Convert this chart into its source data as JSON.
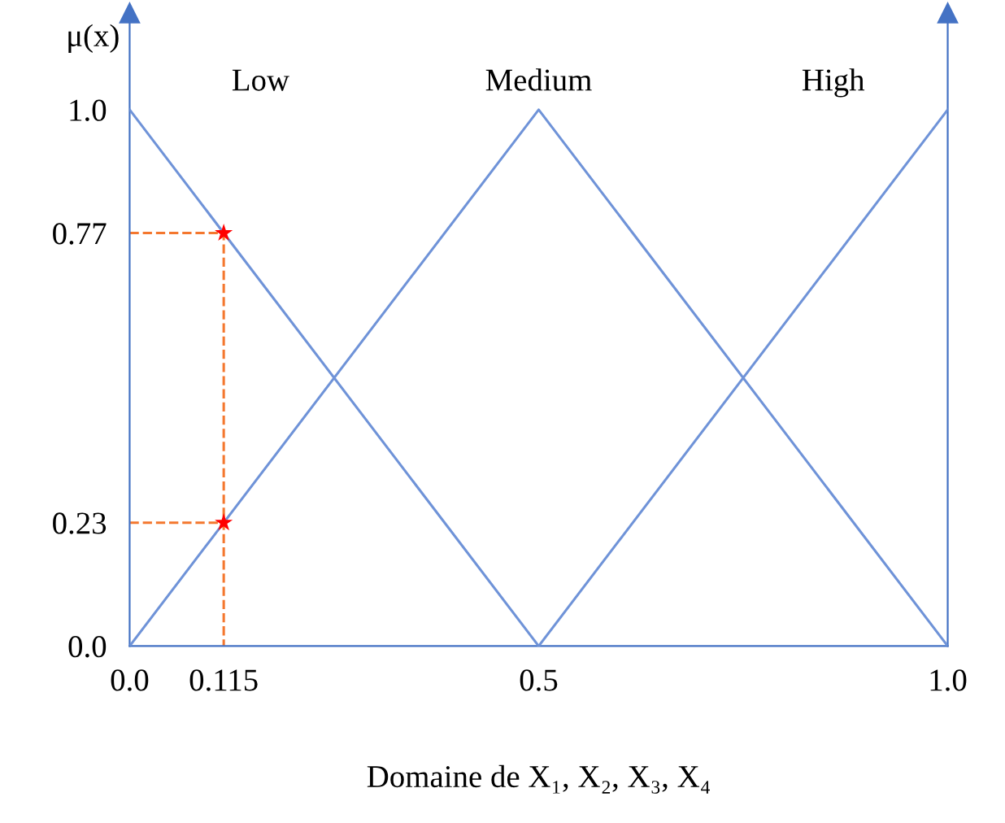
{
  "chart_data": {
    "type": "line",
    "xlabel": "Domaine de X₁, X₂, X₃, X₄",
    "ylabel": "μ(x)",
    "xlim": [
      0,
      1
    ],
    "ylim": [
      0,
      1.18
    ],
    "xticks": [
      {
        "value": 0,
        "label": "0.0"
      },
      0.115,
      0.5,
      {
        "value": 1,
        "label": "1.0"
      }
    ],
    "yticks": [
      {
        "value": 0,
        "label": "0.0"
      },
      0.23,
      0.77,
      {
        "value": 1,
        "label": "1.0"
      }
    ],
    "grid": false,
    "legend": false,
    "series": [
      {
        "name": "Low",
        "color": "#6f93d8",
        "x": [
          0,
          0.5
        ],
        "values": [
          1,
          0
        ]
      },
      {
        "name": "Medium",
        "color": "#6f93d8",
        "x": [
          0,
          0.5,
          1
        ],
        "values": [
          0,
          1,
          0
        ]
      },
      {
        "name": "High",
        "color": "#6f93d8",
        "x": [
          0.5,
          1
        ],
        "values": [
          0,
          1
        ]
      },
      {
        "type": "line",
        "line_style": "dashed",
        "color": "#f4772e",
        "x": [
          0,
          0.115,
          0.115
        ],
        "values": [
          0.77,
          0.77,
          0
        ]
      },
      {
        "type": "line",
        "line_style": "dashed",
        "color": "#f4772e",
        "x": [
          0,
          0.115
        ],
        "values": [
          0.23,
          0.23
        ]
      },
      {
        "type": "scatter",
        "marker": "star",
        "color": "#ff0000",
        "x": [
          0.115,
          0.115
        ],
        "values": [
          0.77,
          0.23
        ]
      }
    ]
  }
}
